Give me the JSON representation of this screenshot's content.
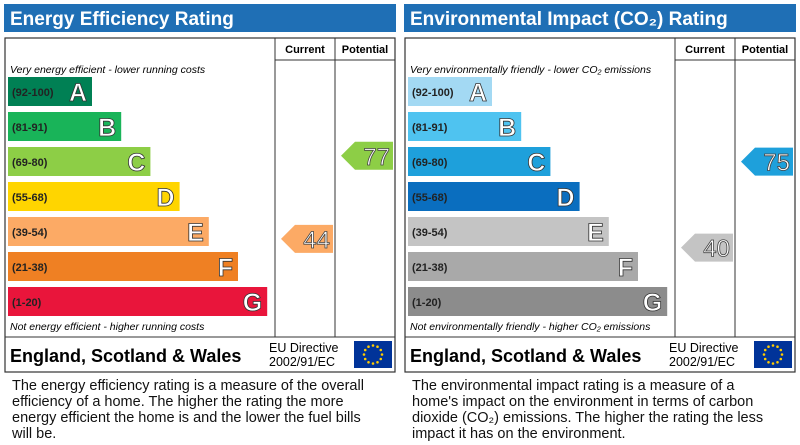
{
  "panels": [
    {
      "title": "Energy Efficiency Rating",
      "columns": [
        "Current",
        "Potential"
      ],
      "top_note": "Very energy efficient - lower running costs",
      "bands": [
        {
          "range": "(92-100)",
          "letter": "A",
          "color": "#008054"
        },
        {
          "range": "(81-91)",
          "letter": "B",
          "color": "#19b459"
        },
        {
          "range": "(69-80)",
          "letter": "C",
          "color": "#8dce46"
        },
        {
          "range": "(55-68)",
          "letter": "D",
          "color": "#ffd500"
        },
        {
          "range": "(39-54)",
          "letter": "E",
          "color": "#fcaa65"
        },
        {
          "range": "(21-38)",
          "letter": "F",
          "color": "#ef8023"
        },
        {
          "range": "(1-20)",
          "letter": "G",
          "color": "#e9153b"
        }
      ],
      "current": 44,
      "current_color": "#fcaa65",
      "potential": 77,
      "potential_color": "#8dce46",
      "bottom_note": "Not energy efficient - higher running costs",
      "region": "England, Scotland & Wales",
      "directive": [
        "EU Directive",
        "2002/91/EC"
      ],
      "description": "The energy efficiency rating is a measure of the overall efficiency of a home. The higher the rating the more energy efficient the home is and the lower the fuel bills will be."
    },
    {
      "title": "Environmental Impact (CO₂) Rating",
      "columns": [
        "Current",
        "Potential"
      ],
      "top_note": "Very environmentally friendly - lower CO₂ emissions",
      "bands": [
        {
          "range": "(92-100)",
          "letter": "A",
          "color": "#a3d9f3"
        },
        {
          "range": "(81-91)",
          "letter": "B",
          "color": "#4fc3f0"
        },
        {
          "range": "(69-80)",
          "letter": "C",
          "color": "#1ea0db"
        },
        {
          "range": "(55-68)",
          "letter": "D",
          "color": "#0a6ebf"
        },
        {
          "range": "(39-54)",
          "letter": "E",
          "color": "#c4c4c4"
        },
        {
          "range": "(21-38)",
          "letter": "F",
          "color": "#a9a9a9"
        },
        {
          "range": "(1-20)",
          "letter": "G",
          "color": "#8c8c8c"
        }
      ],
      "current": 40,
      "current_color": "#c4c4c4",
      "potential": 75,
      "potential_color": "#1ea0db",
      "bottom_note": "Not environmentally friendly - higher CO₂ emissions",
      "region": "England, Scotland & Wales",
      "directive": [
        "EU Directive",
        "2002/91/EC"
      ],
      "description": "The environmental impact rating is a measure of a home's impact on the environment in terms of carbon dioxide (CO₂) emissions. The higher the rating the less impact it has on the environment."
    }
  ]
}
